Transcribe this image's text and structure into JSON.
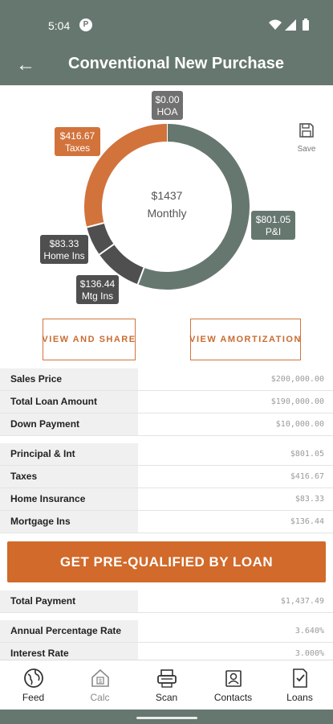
{
  "status_bar": {
    "time": "5:04",
    "app_glyph": "P"
  },
  "header": {
    "title": "Conventional New Purchase",
    "back_icon": "arrow-left-icon"
  },
  "colors": {
    "header_bg": "#66776f",
    "accent": "#d16a2a",
    "taxes_slice": "#d2733c",
    "pi_slice": "#66776f",
    "dark_slice": "#4f4f4f"
  },
  "chart_data": {
    "type": "pie",
    "donut": true,
    "center_value": "$1437",
    "center_label": "Monthly",
    "slices": [
      {
        "label": "P&I",
        "amount": "$801.05",
        "value": 801.05,
        "color": "#66776f"
      },
      {
        "label": "Mtg Ins",
        "amount": "$136.44",
        "value": 136.44,
        "color": "#4f4f4f"
      },
      {
        "label": "Home Ins",
        "amount": "$83.33",
        "value": 83.33,
        "color": "#4f4f4f"
      },
      {
        "label": "Taxes",
        "amount": "$416.67",
        "value": 416.67,
        "color": "#d2733c"
      },
      {
        "label": "HOA",
        "amount": "$0.00",
        "value": 0,
        "color": "#707070"
      }
    ]
  },
  "save": {
    "label": "Save",
    "icon": "floppy-disk-icon"
  },
  "actions": {
    "share_label": "VIEW AND SHARE",
    "amortization_label": "VIEW AMORTIZATION"
  },
  "loan_details": [
    {
      "label": "Sales Price",
      "value": "$200,000.00"
    },
    {
      "label": "Total Loan Amount",
      "value": "$190,000.00"
    },
    {
      "label": "Down Payment",
      "value": "$10,000.00"
    }
  ],
  "payment_breakdown": [
    {
      "label": "Principal & Int",
      "value": "$801.05"
    },
    {
      "label": "Taxes",
      "value": "$416.67"
    },
    {
      "label": "Home Insurance",
      "value": "$83.33"
    },
    {
      "label": "Mortgage Ins",
      "value": "$136.44"
    }
  ],
  "cta_label": "GET PRE-QUALIFIED BY LOAN",
  "summary": [
    {
      "label": "Total Payment",
      "value": "$1,437.49"
    },
    {
      "label": "Annual Percentage Rate",
      "value": "3.640%"
    },
    {
      "label": "Interest Rate",
      "value": "3.000%"
    }
  ],
  "nav": [
    {
      "label": "Feed",
      "icon": "globe-icon"
    },
    {
      "label": "Calc",
      "icon": "calculator-house-icon"
    },
    {
      "label": "Scan",
      "icon": "scanner-icon"
    },
    {
      "label": "Contacts",
      "icon": "contact-card-icon"
    },
    {
      "label": "Loans",
      "icon": "loan-document-icon"
    }
  ]
}
